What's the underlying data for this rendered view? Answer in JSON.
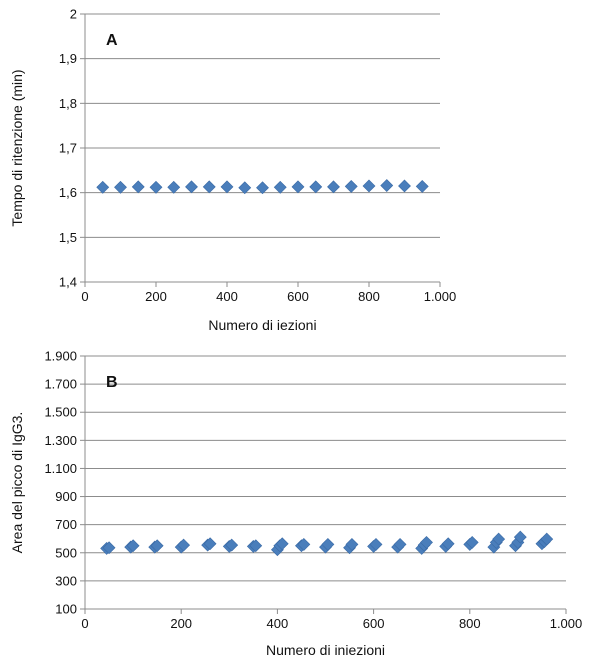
{
  "chart_data": [
    {
      "type": "scatter",
      "panel_label": "A",
      "xlabel": "Numero di iezioni",
      "ylabel": "Tempo di ritenzione (min)",
      "xlim": [
        0,
        1000
      ],
      "ylim": [
        1.4,
        2
      ],
      "x_ticks": [
        "0",
        "200",
        "400",
        "600",
        "800",
        "1.000"
      ],
      "y_ticks": [
        "1,4",
        "1,5",
        "1,6",
        "1,7",
        "1,8",
        "1,9",
        "2"
      ],
      "grid": "horizontal",
      "marker_color": "#4a7ebb",
      "series": [
        {
          "x": [
            50,
            100,
            150,
            200,
            250,
            300,
            350,
            400,
            450,
            500,
            550,
            600,
            650,
            700,
            750,
            800,
            850,
            900,
            950
          ],
          "y": [
            1.612,
            1.612,
            1.613,
            1.612,
            1.612,
            1.613,
            1.613,
            1.613,
            1.611,
            1.611,
            1.612,
            1.613,
            1.613,
            1.613,
            1.614,
            1.615,
            1.616,
            1.615,
            1.614
          ]
        }
      ]
    },
    {
      "type": "scatter",
      "panel_label": "B",
      "xlabel": "Numero di iniezioni",
      "ylabel": "Area del picco di IgG3.",
      "xlim": [
        0,
        1000
      ],
      "ylim": [
        100,
        2000
      ],
      "x_ticks": [
        "0",
        "200",
        "400",
        "600",
        "800",
        "1.000"
      ],
      "y_ticks": [
        "100",
        "300",
        "500",
        "700",
        "900",
        "1.100",
        "1.300",
        "1.500",
        "1.700",
        "1.900"
      ],
      "grid": "horizontal",
      "marker_color": "#4a7ebb",
      "series": [
        {
          "x": [
            45,
            50,
            95,
            100,
            145,
            150,
            200,
            205,
            255,
            260,
            300,
            305,
            350,
            355,
            400,
            405,
            410,
            450,
            455,
            500,
            505,
            550,
            555,
            600,
            605,
            650,
            655,
            700,
            705,
            710,
            750,
            755,
            800,
            805,
            850,
            855,
            860,
            895,
            900,
            905,
            950,
            955,
            960
          ],
          "y": [
            555,
            560,
            565,
            575,
            565,
            575,
            565,
            580,
            580,
            590,
            570,
            580,
            570,
            575,
            545,
            575,
            590,
            575,
            585,
            565,
            585,
            560,
            585,
            570,
            585,
            565,
            585,
            555,
            580,
            600,
            570,
            590,
            585,
            600,
            565,
            600,
            625,
            575,
            600,
            640,
            590,
            605,
            625
          ]
        }
      ]
    }
  ]
}
